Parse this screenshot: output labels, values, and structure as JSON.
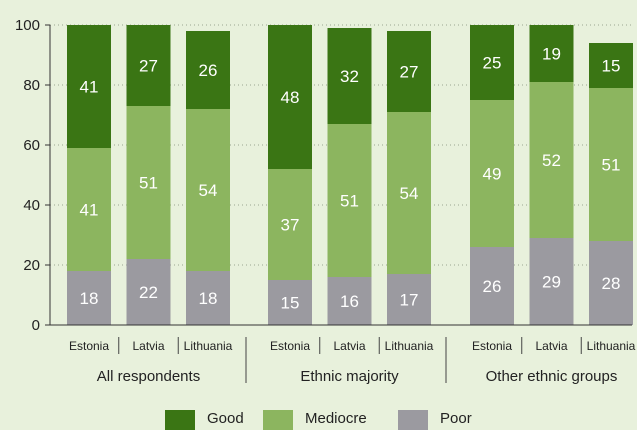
{
  "chart_data": {
    "type": "bar",
    "stacked": true,
    "groups": [
      "All respondents",
      "Ethnic majority",
      "Other ethnic groups"
    ],
    "categories": [
      "Estonia",
      "Latvia",
      "Lithuania"
    ],
    "series": [
      {
        "name": "Poor",
        "color": "#9b9aa0",
        "values": [
          [
            18,
            22,
            18
          ],
          [
            15,
            16,
            17
          ],
          [
            26,
            29,
            28
          ]
        ]
      },
      {
        "name": "Mediocre",
        "color": "#8cb55f",
        "values": [
          [
            41,
            51,
            54
          ],
          [
            37,
            51,
            54
          ],
          [
            49,
            52,
            51
          ]
        ]
      },
      {
        "name": "Good",
        "color": "#3a7514",
        "values": [
          [
            41,
            27,
            26
          ],
          [
            48,
            32,
            27
          ],
          [
            25,
            19,
            15
          ]
        ]
      }
    ],
    "legend_order": [
      "Good",
      "Mediocre",
      "Poor"
    ],
    "y_ticks": [
      0,
      20,
      40,
      60,
      80,
      100
    ],
    "ylim": [
      0,
      100
    ],
    "legend_position": "bottom",
    "grid": "horizontal dotted"
  }
}
